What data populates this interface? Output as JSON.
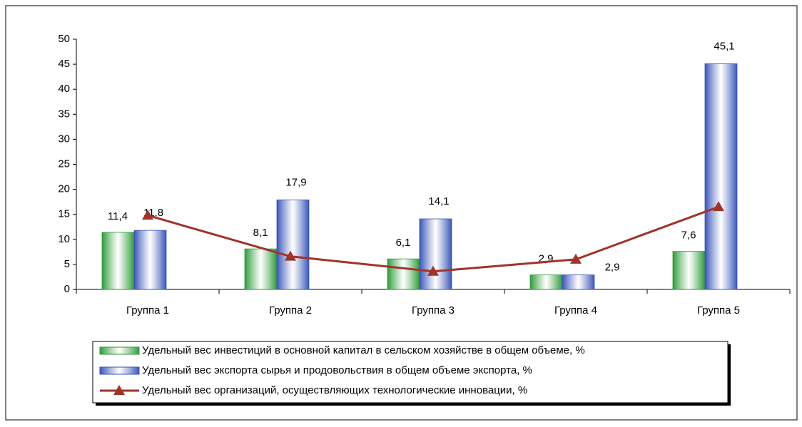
{
  "chart_data": {
    "type": "bar",
    "categories": [
      "Группа 1",
      "Группа 2",
      "Группа 3",
      "Группа 4",
      "Группа 5"
    ],
    "series": [
      {
        "name": "Удельный вес инвестиций  в основной капитал в сельском хозяйстве  в общем объеме, %",
        "type": "bar",
        "color": "#2e9a3a",
        "values": [
          11.4,
          8.1,
          6.1,
          2.9,
          7.6
        ],
        "value_labels": [
          "11,4",
          "8,1",
          "6,1",
          "2,9",
          "7,6"
        ]
      },
      {
        "name": "Удельный  вес экспорта сырья и продовольствия  в общем объеме экспорта, %",
        "type": "bar",
        "color": "#3a55b8",
        "values": [
          11.8,
          17.9,
          14.1,
          2.9,
          45.1
        ],
        "value_labels": [
          "11,8",
          "17,9",
          "14,1",
          "2,9",
          "45,1"
        ]
      },
      {
        "name": "Удельный вес организаций, осуществляющих технологические инновации, %",
        "type": "line",
        "color": "#a0332a",
        "values": [
          14.8,
          6.6,
          3.6,
          6.0,
          16.5
        ]
      }
    ],
    "ylim": [
      0,
      50
    ],
    "yticks": [
      0,
      5,
      10,
      15,
      20,
      25,
      30,
      35,
      40,
      45,
      50
    ],
    "legend": "bottom"
  }
}
